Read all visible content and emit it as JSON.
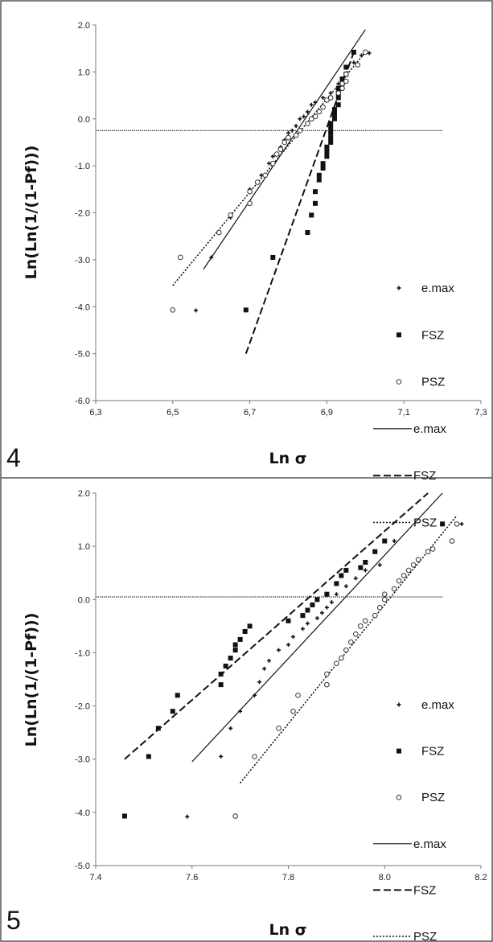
{
  "chart_data": [
    {
      "type": "scatter",
      "panel_label": "4",
      "xlabel": "Ln σ",
      "ylabel": "Ln(Ln(1/(1-Pf)))",
      "xlim": [
        6.3,
        7.3
      ],
      "ylim": [
        -6.0,
        2.0
      ],
      "xticks": [
        "6,3",
        "6,5",
        "6,7",
        "6,9",
        "7,1",
        "7,3"
      ],
      "yticks": [
        "-6.0",
        "-5.0",
        "-4.0",
        "-3.0",
        "-2.0",
        "-1.0",
        "0.0",
        "1.0",
        "2.0"
      ],
      "xtick_values": [
        6.3,
        6.5,
        6.7,
        6.9,
        7.1,
        7.3
      ],
      "ytick_values": [
        -6,
        -5,
        -4,
        -3,
        -2,
        -1,
        0,
        1,
        2
      ],
      "hline": {
        "y": -0.25,
        "x_range": [
          6.3,
          7.2
        ]
      },
      "grid": false,
      "legend_position": "right",
      "series": [
        {
          "name": "e.max",
          "kind": "points",
          "marker": "plus",
          "points": [
            [
              6.56,
              -4.08
            ],
            [
              6.6,
              -2.95
            ],
            [
              6.65,
              -2.1
            ],
            [
              6.7,
              -1.5
            ],
            [
              6.73,
              -1.2
            ],
            [
              6.75,
              -0.95
            ],
            [
              6.76,
              -0.8
            ],
            [
              6.78,
              -0.6
            ],
            [
              6.79,
              -0.45
            ],
            [
              6.8,
              -0.3
            ],
            [
              6.81,
              -0.25
            ],
            [
              6.82,
              -0.15
            ],
            [
              6.83,
              0.0
            ],
            [
              6.84,
              0.05
            ],
            [
              6.85,
              0.15
            ],
            [
              6.86,
              0.3
            ],
            [
              6.87,
              0.35
            ],
            [
              6.89,
              0.45
            ],
            [
              6.91,
              0.55
            ],
            [
              6.93,
              0.75
            ],
            [
              6.95,
              0.95
            ],
            [
              6.97,
              1.2
            ],
            [
              6.99,
              1.35
            ],
            [
              7.01,
              1.4
            ]
          ]
        },
        {
          "name": "FSZ",
          "kind": "points",
          "marker": "square",
          "points": [
            [
              6.69,
              -4.07
            ],
            [
              6.76,
              -2.95
            ],
            [
              6.85,
              -2.42
            ],
            [
              6.86,
              -2.05
            ],
            [
              6.87,
              -1.8
            ],
            [
              6.87,
              -1.55
            ],
            [
              6.88,
              -1.3
            ],
            [
              6.88,
              -1.2
            ],
            [
              6.89,
              -1.05
            ],
            [
              6.89,
              -0.95
            ],
            [
              6.9,
              -0.8
            ],
            [
              6.9,
              -0.7
            ],
            [
              6.9,
              -0.6
            ],
            [
              6.91,
              -0.5
            ],
            [
              6.91,
              -0.4
            ],
            [
              6.91,
              -0.3
            ],
            [
              6.91,
              -0.2
            ],
            [
              6.91,
              -0.1
            ],
            [
              6.92,
              0.0
            ],
            [
              6.92,
              0.1
            ],
            [
              6.92,
              0.2
            ],
            [
              6.93,
              0.3
            ],
            [
              6.93,
              0.45
            ],
            [
              6.93,
              0.55
            ],
            [
              6.93,
              0.65
            ],
            [
              6.94,
              0.75
            ],
            [
              6.94,
              0.85
            ],
            [
              6.95,
              0.95
            ],
            [
              6.95,
              1.1
            ],
            [
              6.97,
              1.42
            ]
          ]
        },
        {
          "name": "PSZ",
          "kind": "points",
          "marker": "circle",
          "points": [
            [
              6.5,
              -4.07
            ],
            [
              6.52,
              -2.95
            ],
            [
              6.62,
              -2.42
            ],
            [
              6.65,
              -2.05
            ],
            [
              6.7,
              -1.8
            ],
            [
              6.7,
              -1.55
            ],
            [
              6.72,
              -1.35
            ],
            [
              6.74,
              -1.2
            ],
            [
              6.76,
              -0.95
            ],
            [
              6.77,
              -0.75
            ],
            [
              6.78,
              -0.65
            ],
            [
              6.79,
              -0.5
            ],
            [
              6.8,
              -0.4
            ],
            [
              6.82,
              -0.35
            ],
            [
              6.83,
              -0.25
            ],
            [
              6.85,
              -0.1
            ],
            [
              6.86,
              0.0
            ],
            [
              6.87,
              0.05
            ],
            [
              6.88,
              0.15
            ],
            [
              6.89,
              0.25
            ],
            [
              6.9,
              0.4
            ],
            [
              6.91,
              0.45
            ],
            [
              6.93,
              0.55
            ],
            [
              6.94,
              0.65
            ],
            [
              6.94,
              0.75
            ],
            [
              6.95,
              0.8
            ],
            [
              6.95,
              0.95
            ],
            [
              6.98,
              1.15
            ],
            [
              7.0,
              1.42
            ]
          ]
        },
        {
          "name": "e.max",
          "kind": "line",
          "dash": "solid",
          "from": [
            6.58,
            -3.2
          ],
          "to": [
            7.0,
            1.9
          ]
        },
        {
          "name": "FSZ",
          "kind": "line",
          "dash": "dashed",
          "from": [
            6.69,
            -5.0
          ],
          "to": [
            6.97,
            1.42
          ]
        },
        {
          "name": "PSZ",
          "kind": "line",
          "dash": "dotted",
          "from": [
            6.5,
            -3.55
          ],
          "to": [
            7.0,
            1.42
          ]
        }
      ]
    },
    {
      "type": "scatter",
      "panel_label": "5",
      "xlabel": "Ln σ",
      "ylabel": "Ln(Ln(1/(1-Pf)))",
      "xlim": [
        7.4,
        8.2
      ],
      "ylim": [
        -5.0,
        2.0
      ],
      "xticks": [
        "7.4",
        "7.6",
        "7.8",
        "8.0",
        "8.2"
      ],
      "yticks": [
        "-5.0",
        "-4.0",
        "-3.0",
        "-2.0",
        "-1.0",
        "0.0",
        "1.0",
        "2.0"
      ],
      "xtick_values": [
        7.4,
        7.6,
        7.8,
        8.0,
        8.2
      ],
      "ytick_values": [
        -5,
        -4,
        -3,
        -2,
        -1,
        0,
        1,
        2
      ],
      "hline": {
        "y": 0.05,
        "x_range": [
          7.4,
          8.12
        ]
      },
      "grid": false,
      "legend_position": "right",
      "series": [
        {
          "name": "e.max",
          "kind": "points",
          "marker": "plus",
          "points": [
            [
              7.59,
              -4.08
            ],
            [
              7.66,
              -2.95
            ],
            [
              7.68,
              -2.42
            ],
            [
              7.7,
              -2.1
            ],
            [
              7.73,
              -1.8
            ],
            [
              7.74,
              -1.55
            ],
            [
              7.75,
              -1.3
            ],
            [
              7.76,
              -1.15
            ],
            [
              7.78,
              -0.95
            ],
            [
              7.8,
              -0.85
            ],
            [
              7.81,
              -0.7
            ],
            [
              7.83,
              -0.55
            ],
            [
              7.84,
              -0.45
            ],
            [
              7.86,
              -0.35
            ],
            [
              7.87,
              -0.25
            ],
            [
              7.88,
              -0.15
            ],
            [
              7.89,
              -0.05
            ],
            [
              7.9,
              0.1
            ],
            [
              7.92,
              0.25
            ],
            [
              7.94,
              0.4
            ],
            [
              7.96,
              0.55
            ],
            [
              7.99,
              0.65
            ],
            [
              8.02,
              1.1
            ],
            [
              8.16,
              1.42
            ]
          ]
        },
        {
          "name": "FSZ",
          "kind": "points",
          "marker": "square",
          "points": [
            [
              7.46,
              -4.07
            ],
            [
              7.51,
              -2.95
            ],
            [
              7.53,
              -2.42
            ],
            [
              7.56,
              -2.1
            ],
            [
              7.57,
              -1.8
            ],
            [
              7.66,
              -1.6
            ],
            [
              7.66,
              -1.4
            ],
            [
              7.67,
              -1.25
            ],
            [
              7.68,
              -1.1
            ],
            [
              7.69,
              -0.95
            ],
            [
              7.69,
              -0.85
            ],
            [
              7.7,
              -0.75
            ],
            [
              7.71,
              -0.6
            ],
            [
              7.72,
              -0.5
            ],
            [
              7.8,
              -0.4
            ],
            [
              7.83,
              -0.3
            ],
            [
              7.84,
              -0.2
            ],
            [
              7.85,
              -0.1
            ],
            [
              7.86,
              0.0
            ],
            [
              7.88,
              0.1
            ],
            [
              7.9,
              0.3
            ],
            [
              7.91,
              0.45
            ],
            [
              7.92,
              0.55
            ],
            [
              7.95,
              0.6
            ],
            [
              7.96,
              0.7
            ],
            [
              7.98,
              0.9
            ],
            [
              8.0,
              1.1
            ],
            [
              8.12,
              1.42
            ]
          ]
        },
        {
          "name": "PSZ",
          "kind": "points",
          "marker": "circle",
          "points": [
            [
              7.69,
              -4.07
            ],
            [
              7.73,
              -2.95
            ],
            [
              7.78,
              -2.42
            ],
            [
              7.81,
              -2.1
            ],
            [
              7.82,
              -1.8
            ],
            [
              7.88,
              -1.6
            ],
            [
              7.88,
              -1.4
            ],
            [
              7.9,
              -1.2
            ],
            [
              7.91,
              -1.1
            ],
            [
              7.92,
              -0.95
            ],
            [
              7.93,
              -0.8
            ],
            [
              7.94,
              -0.65
            ],
            [
              7.95,
              -0.5
            ],
            [
              7.96,
              -0.4
            ],
            [
              7.98,
              -0.3
            ],
            [
              7.99,
              -0.15
            ],
            [
              8.0,
              0.0
            ],
            [
              8.0,
              0.1
            ],
            [
              8.02,
              0.2
            ],
            [
              8.03,
              0.35
            ],
            [
              8.04,
              0.45
            ],
            [
              8.05,
              0.55
            ],
            [
              8.06,
              0.65
            ],
            [
              8.07,
              0.75
            ],
            [
              8.09,
              0.9
            ],
            [
              8.1,
              0.95
            ],
            [
              8.14,
              1.1
            ],
            [
              8.15,
              1.42
            ]
          ]
        },
        {
          "name": "e.max",
          "kind": "line",
          "dash": "solid",
          "from": [
            7.6,
            -3.05
          ],
          "to": [
            8.12,
            2.0
          ]
        },
        {
          "name": "FSZ",
          "kind": "line",
          "dash": "dashed",
          "from": [
            7.46,
            -3.0
          ],
          "to": [
            8.09,
            2.0
          ]
        },
        {
          "name": "PSZ",
          "kind": "line",
          "dash": "dotted",
          "from": [
            7.7,
            -3.45
          ],
          "to": [
            8.15,
            1.58
          ]
        }
      ]
    }
  ]
}
